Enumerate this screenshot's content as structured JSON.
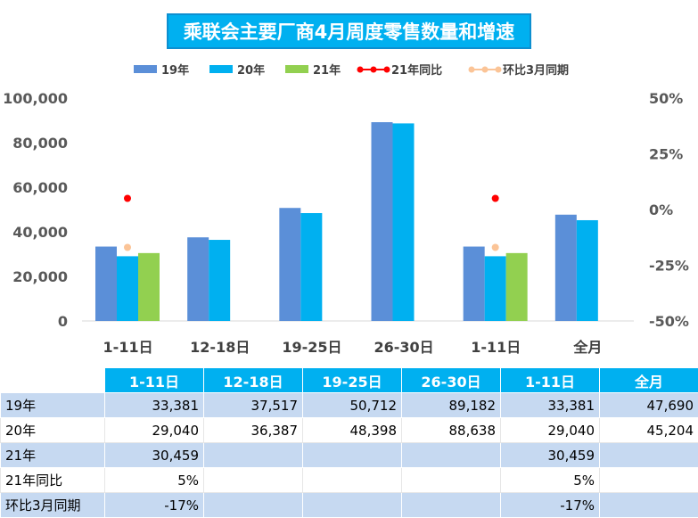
{
  "title": "乘联会主要厂商4月周度零售数量和增速",
  "colors": {
    "s19": "#5B8FD8",
    "s20": "#00B0F0",
    "s21": "#92D050",
    "yoy": "#FF0000",
    "mom": "#FBC497",
    "header": "#00B0F0",
    "band": "#C6D9F1"
  },
  "chart_data": {
    "type": "bar",
    "categories": [
      "1-11日",
      "12-18日",
      "19-25日",
      "26-30日",
      "1-11日",
      "全月"
    ],
    "series": [
      {
        "name": "19年",
        "type": "bar",
        "values": [
          33381,
          37517,
          50712,
          89182,
          33381,
          47690
        ]
      },
      {
        "name": "20年",
        "type": "bar",
        "values": [
          29040,
          36387,
          48398,
          88638,
          29040,
          45204
        ]
      },
      {
        "name": "21年",
        "type": "bar",
        "values": [
          30459,
          null,
          null,
          null,
          30459,
          null
        ]
      },
      {
        "name": "21年同比",
        "type": "line",
        "axis": "right",
        "values": [
          0.05,
          null,
          null,
          null,
          0.05,
          null
        ]
      },
      {
        "name": "环比3月同期",
        "type": "line",
        "axis": "right",
        "values": [
          -0.17,
          null,
          null,
          null,
          -0.17,
          null
        ]
      }
    ],
    "ylim": [
      0,
      100000
    ],
    "y_ticks": [
      "0",
      "20,000",
      "40,000",
      "60,000",
      "80,000",
      "100,000"
    ],
    "y2lim": [
      -0.5,
      0.5
    ],
    "y2_ticks": [
      "-50%",
      "-25%",
      "0%",
      "25%",
      "50%"
    ],
    "legend": "top",
    "grid": false
  },
  "table": {
    "headers": [
      "1-11日",
      "12-18日",
      "19-25日",
      "26-30日",
      "1-11日",
      "全月"
    ],
    "rows": [
      {
        "label": "19年",
        "cells": [
          "33,381",
          "37,517",
          "50,712",
          "89,182",
          "33,381",
          "47,690"
        ]
      },
      {
        "label": "20年",
        "cells": [
          "29,040",
          "36,387",
          "48,398",
          "88,638",
          "29,040",
          "45,204"
        ]
      },
      {
        "label": "21年",
        "cells": [
          "30,459",
          "",
          "",
          "",
          "30,459",
          ""
        ]
      },
      {
        "label": "21年同比",
        "cells": [
          "5%",
          "",
          "",
          "",
          "5%",
          ""
        ]
      },
      {
        "label": "环比3月同期",
        "cells": [
          "-17%",
          "",
          "",
          "",
          "-17%",
          ""
        ]
      }
    ]
  }
}
